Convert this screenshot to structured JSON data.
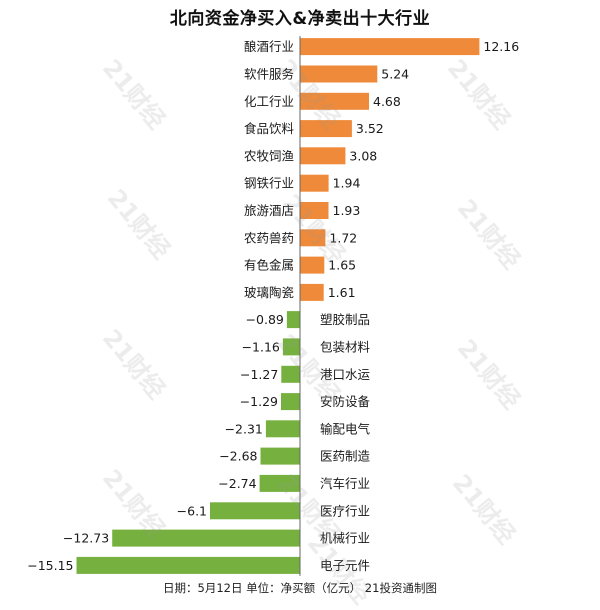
{
  "title": "北向资金净买入&净卖出十大行业",
  "footer": "日期：5月12日 单位：净买额（亿元） 21投资通制图",
  "watermark_text": "21财经",
  "colors": {
    "positive": "#ee8a3a",
    "negative": "#76b13f",
    "axis": "#666666"
  },
  "chart_data": {
    "type": "bar",
    "orientation": "horizontal",
    "title": "北向资金净买入&净卖出十大行业",
    "xlabel": "",
    "ylabel": "",
    "grid": false,
    "xlim": [
      -15.15,
      12.16
    ],
    "categories": [
      "酿酒行业",
      "软件服务",
      "化工行业",
      "食品饮料",
      "农牧饲渔",
      "钢铁行业",
      "旅游酒店",
      "农药兽药",
      "有色金属",
      "玻璃陶瓷",
      "塑胶制品",
      "包装材料",
      "港口水运",
      "安防设备",
      "输配电气",
      "医药制造",
      "汽车行业",
      "医疗行业",
      "机械行业",
      "电子元件"
    ],
    "values": [
      12.16,
      5.24,
      4.68,
      3.52,
      3.08,
      1.94,
      1.93,
      1.72,
      1.65,
      1.61,
      -0.89,
      -1.16,
      -1.27,
      -1.29,
      -2.31,
      -2.68,
      -2.74,
      -6.1,
      -12.73,
      -15.15
    ],
    "value_labels": [
      "12.16",
      "5.24",
      "4.68",
      "3.52",
      "3.08",
      "1.94",
      "1.93",
      "1.72",
      "1.65",
      "1.61",
      "−0.89",
      "−1.16",
      "−1.27",
      "−1.29",
      "−2.31",
      "−2.68",
      "−2.74",
      "−6.1",
      "−12.73",
      "−15.15"
    ]
  }
}
